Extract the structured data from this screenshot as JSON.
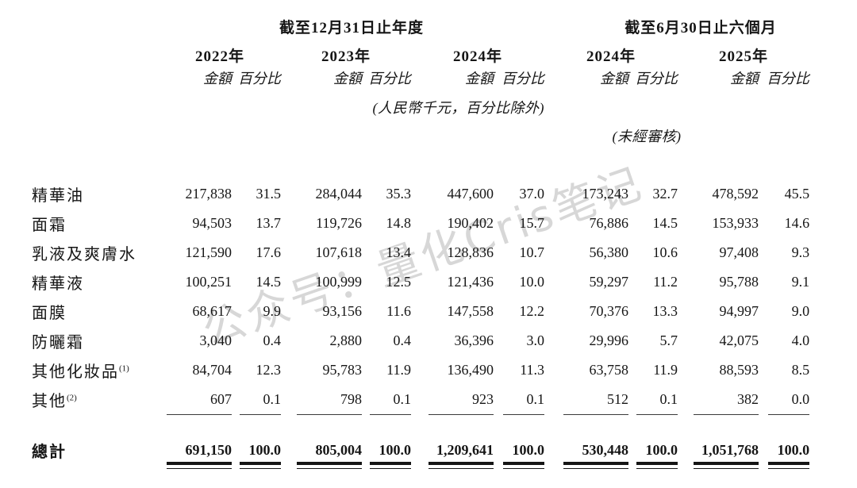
{
  "watermark": {
    "text": "公众号：量化Cris笔记",
    "color": "#d7d7d7"
  },
  "colors": {
    "ink": "#161616",
    "rule": "#3a3a3a",
    "watermark": "#d7d7d7"
  },
  "table": {
    "group_headers": [
      {
        "label": "截至12月31日止年度"
      },
      {
        "label": "截至6月30日止六個月"
      }
    ],
    "year_headers": [
      "2022年",
      "2023年",
      "2024年",
      "2024年",
      "2025年"
    ],
    "amount_label": "金額",
    "percent_label": "百分比",
    "unit_note": "(人民幣千元，百分比除外)",
    "unaudited_note": "(未經審核)",
    "rows": [
      {
        "label": "精華油",
        "sup": "",
        "values": [
          "217,838",
          "31.5",
          "284,044",
          "35.3",
          "447,600",
          "37.0",
          "173,243",
          "32.7",
          "478,592",
          "45.5"
        ]
      },
      {
        "label": "面霜",
        "sup": "",
        "values": [
          "94,503",
          "13.7",
          "119,726",
          "14.8",
          "190,402",
          "15.7",
          "76,886",
          "14.5",
          "153,933",
          "14.6"
        ]
      },
      {
        "label": "乳液及爽膚水",
        "sup": "",
        "values": [
          "121,590",
          "17.6",
          "107,618",
          "13.4",
          "128,836",
          "10.7",
          "56,380",
          "10.6",
          "97,408",
          "9.3"
        ]
      },
      {
        "label": "精華液",
        "sup": "",
        "values": [
          "100,251",
          "14.5",
          "100,999",
          "12.5",
          "121,436",
          "10.0",
          "59,297",
          "11.2",
          "95,788",
          "9.1"
        ]
      },
      {
        "label": "面膜",
        "sup": "",
        "values": [
          "68,617",
          "9.9",
          "93,156",
          "11.6",
          "147,558",
          "12.2",
          "70,376",
          "13.3",
          "94,997",
          "9.0"
        ]
      },
      {
        "label": "防曬霜",
        "sup": "",
        "values": [
          "3,040",
          "0.4",
          "2,880",
          "0.4",
          "36,396",
          "3.0",
          "29,996",
          "5.7",
          "42,075",
          "4.0"
        ]
      },
      {
        "label": "其他化妝品",
        "sup": "(1)",
        "values": [
          "84,704",
          "12.3",
          "95,783",
          "11.9",
          "136,490",
          "11.3",
          "63,758",
          "11.9",
          "88,593",
          "8.5"
        ]
      },
      {
        "label": "其他",
        "sup": "(2)",
        "values": [
          "607",
          "0.1",
          "798",
          "0.1",
          "923",
          "0.1",
          "512",
          "0.1",
          "382",
          "0.0"
        ]
      }
    ],
    "total": {
      "label": "總計",
      "values": [
        "691,150",
        "100.0",
        "805,004",
        "100.0",
        "1,209,641",
        "100.0",
        "530,448",
        "100.0",
        "1,051,768",
        "100.0"
      ]
    }
  }
}
